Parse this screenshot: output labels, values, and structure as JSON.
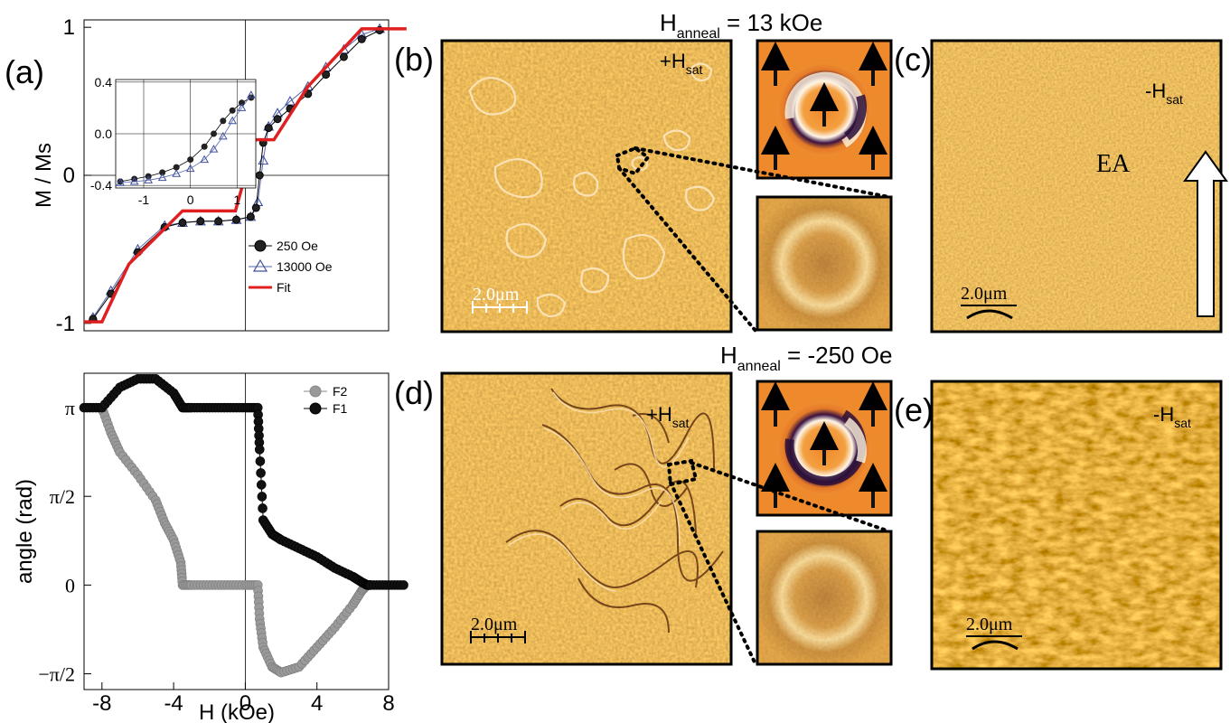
{
  "figure": {
    "header_top": {
      "main": "H",
      "sub": "anneal",
      "rest": " = 13 kOe"
    },
    "header_mid": {
      "main": "H",
      "sub": "anneal",
      "rest": " = -250 Oe"
    },
    "panel_letters": {
      "a": "(a)",
      "b": "(b)",
      "c": "(c)",
      "d": "(d)",
      "e": "(e)"
    },
    "field_labels": {
      "b": {
        "main": "+H",
        "sub": "sat"
      },
      "c": {
        "main": "-H",
        "sub": "sat"
      },
      "d": {
        "main": "+H",
        "sub": "sat"
      },
      "e": {
        "main": "-H",
        "sub": "sat"
      }
    },
    "easy_axis_label": "EA",
    "scale_bar_label": "2.0μm"
  },
  "chart_data": [
    {
      "type": "line",
      "id": "magnetization",
      "ylabel": "M / Ms",
      "xlim": [
        -9,
        8
      ],
      "ylim": [
        -1.05,
        1.05
      ],
      "yticks": [
        "1",
        "0",
        "-1"
      ],
      "ytick_values": [
        1,
        0,
        -1
      ],
      "legend": [
        "250 Oe",
        "13000 Oe",
        "Fit"
      ],
      "series": [
        {
          "name": "Fit",
          "color": "#e02020",
          "x": [
            -9,
            -8,
            -6.5,
            -3.5,
            -1.6,
            -0.55,
            0.55,
            1.6,
            3.5,
            6.5,
            8,
            9
          ],
          "y": [
            -0.99,
            -0.99,
            -0.6,
            -0.24,
            -0.24,
            -0.24,
            0.24,
            0.24,
            0.6,
            0.99,
            0.99,
            0.99
          ]
        },
        {
          "name": "250 Oe",
          "x": [
            -8.5,
            -7.5,
            -6,
            -4.5,
            -3.5,
            -2.5,
            -1.5,
            -0.5,
            0.3,
            0.6,
            0.8,
            1.0,
            1.3,
            1.8,
            2.5,
            3.5,
            4.5,
            5.5,
            6.5,
            7.5
          ],
          "y": [
            -0.97,
            -0.8,
            -0.52,
            -0.35,
            -0.32,
            -0.31,
            -0.31,
            -0.3,
            -0.28,
            -0.22,
            0.0,
            0.22,
            0.32,
            0.38,
            0.45,
            0.55,
            0.68,
            0.8,
            0.92,
            0.98
          ]
        },
        {
          "name": "13000 Oe",
          "x": [
            -8.5,
            -7.5,
            -6,
            -4.5,
            -3.5,
            -2.5,
            -1.5,
            -0.5,
            0.3,
            0.7,
            1.0,
            1.3,
            1.8,
            2.5,
            3.5,
            4.5,
            5.5,
            6.5,
            7.5
          ],
          "y": [
            -0.96,
            -0.78,
            -0.5,
            -0.34,
            -0.32,
            -0.31,
            -0.31,
            -0.3,
            -0.28,
            -0.18,
            0.1,
            0.33,
            0.42,
            0.5,
            0.6,
            0.73,
            0.85,
            0.95,
            0.99
          ]
        }
      ],
      "inset": {
        "xticks": [
          "-1",
          "0",
          "1"
        ],
        "xtick_values": [
          -1,
          0,
          1
        ],
        "yticks": [
          "0.4",
          "0.0",
          "-0.4"
        ],
        "ytick_values": [
          0.4,
          0.0,
          -0.4
        ],
        "xlim": [
          -1.6,
          1.4
        ],
        "ylim": [
          -0.42,
          0.42
        ],
        "series": [
          {
            "name": "250 Oe",
            "x": [
              -1.5,
              -1.2,
              -0.9,
              -0.6,
              -0.3,
              0.0,
              0.3,
              0.5,
              0.7,
              0.9,
              1.1,
              1.3
            ],
            "y": [
              -0.37,
              -0.35,
              -0.33,
              -0.3,
              -0.26,
              -0.2,
              -0.1,
              0.0,
              0.1,
              0.18,
              0.24,
              0.28
            ]
          },
          {
            "name": "13000 Oe",
            "x": [
              -1.5,
              -1.2,
              -0.9,
              -0.6,
              -0.3,
              0.0,
              0.3,
              0.5,
              0.7,
              0.9,
              1.1,
              1.3
            ],
            "y": [
              -0.38,
              -0.37,
              -0.36,
              -0.34,
              -0.31,
              -0.27,
              -0.2,
              -0.12,
              -0.02,
              0.1,
              0.2,
              0.3
            ]
          }
        ]
      }
    },
    {
      "type": "line",
      "id": "angle",
      "xlabel": "H (kOe)",
      "ylabel": "angle (rad)",
      "xlim": [
        -9,
        8
      ],
      "xticks": [
        "-8",
        "-4",
        "0",
        "4",
        "8"
      ],
      "xtick_values": [
        -8,
        -4,
        0,
        4,
        8
      ],
      "ylim": [
        -1.85,
        3.75
      ],
      "yticks": [
        "π",
        "π/2",
        "0",
        "−π/2"
      ],
      "ytick_values": [
        3.1416,
        1.5708,
        0,
        -1.5708
      ],
      "legend": [
        "F2",
        "F1"
      ],
      "series": [
        {
          "name": "F1",
          "color": "#000000",
          "x": [
            -9,
            -8,
            -7,
            -6,
            -5,
            -4,
            -3.5,
            -3,
            -2,
            -1,
            0,
            0.7,
            0.8,
            1.0,
            1.5,
            2,
            3,
            4,
            5,
            6,
            6.5,
            6.8,
            7,
            8,
            9
          ],
          "y": [
            3.14,
            3.14,
            3.5,
            3.65,
            3.65,
            3.4,
            3.14,
            3.14,
            3.14,
            3.14,
            3.14,
            3.14,
            2.4,
            1.15,
            0.9,
            0.8,
            0.65,
            0.5,
            0.3,
            0.15,
            0.05,
            0.0,
            0.0,
            0.0,
            0.0
          ]
        },
        {
          "name": "F2",
          "color": "#9a9a9a",
          "x": [
            -8,
            -7.5,
            -7,
            -6,
            -5,
            -4.5,
            -4,
            -3.6,
            -3.5,
            -3,
            -2,
            -1,
            0,
            0.7,
            0.8,
            1.0,
            1.5,
            2,
            3,
            4,
            5,
            6,
            6.5,
            6.8
          ],
          "y": [
            3.14,
            2.7,
            2.35,
            1.95,
            1.5,
            1.1,
            0.8,
            0.4,
            0.0,
            0.0,
            0.0,
            0.0,
            0.0,
            0.0,
            -0.6,
            -1.1,
            -1.45,
            -1.55,
            -1.45,
            -1.1,
            -0.75,
            -0.35,
            -0.1,
            0.0
          ]
        }
      ]
    }
  ]
}
